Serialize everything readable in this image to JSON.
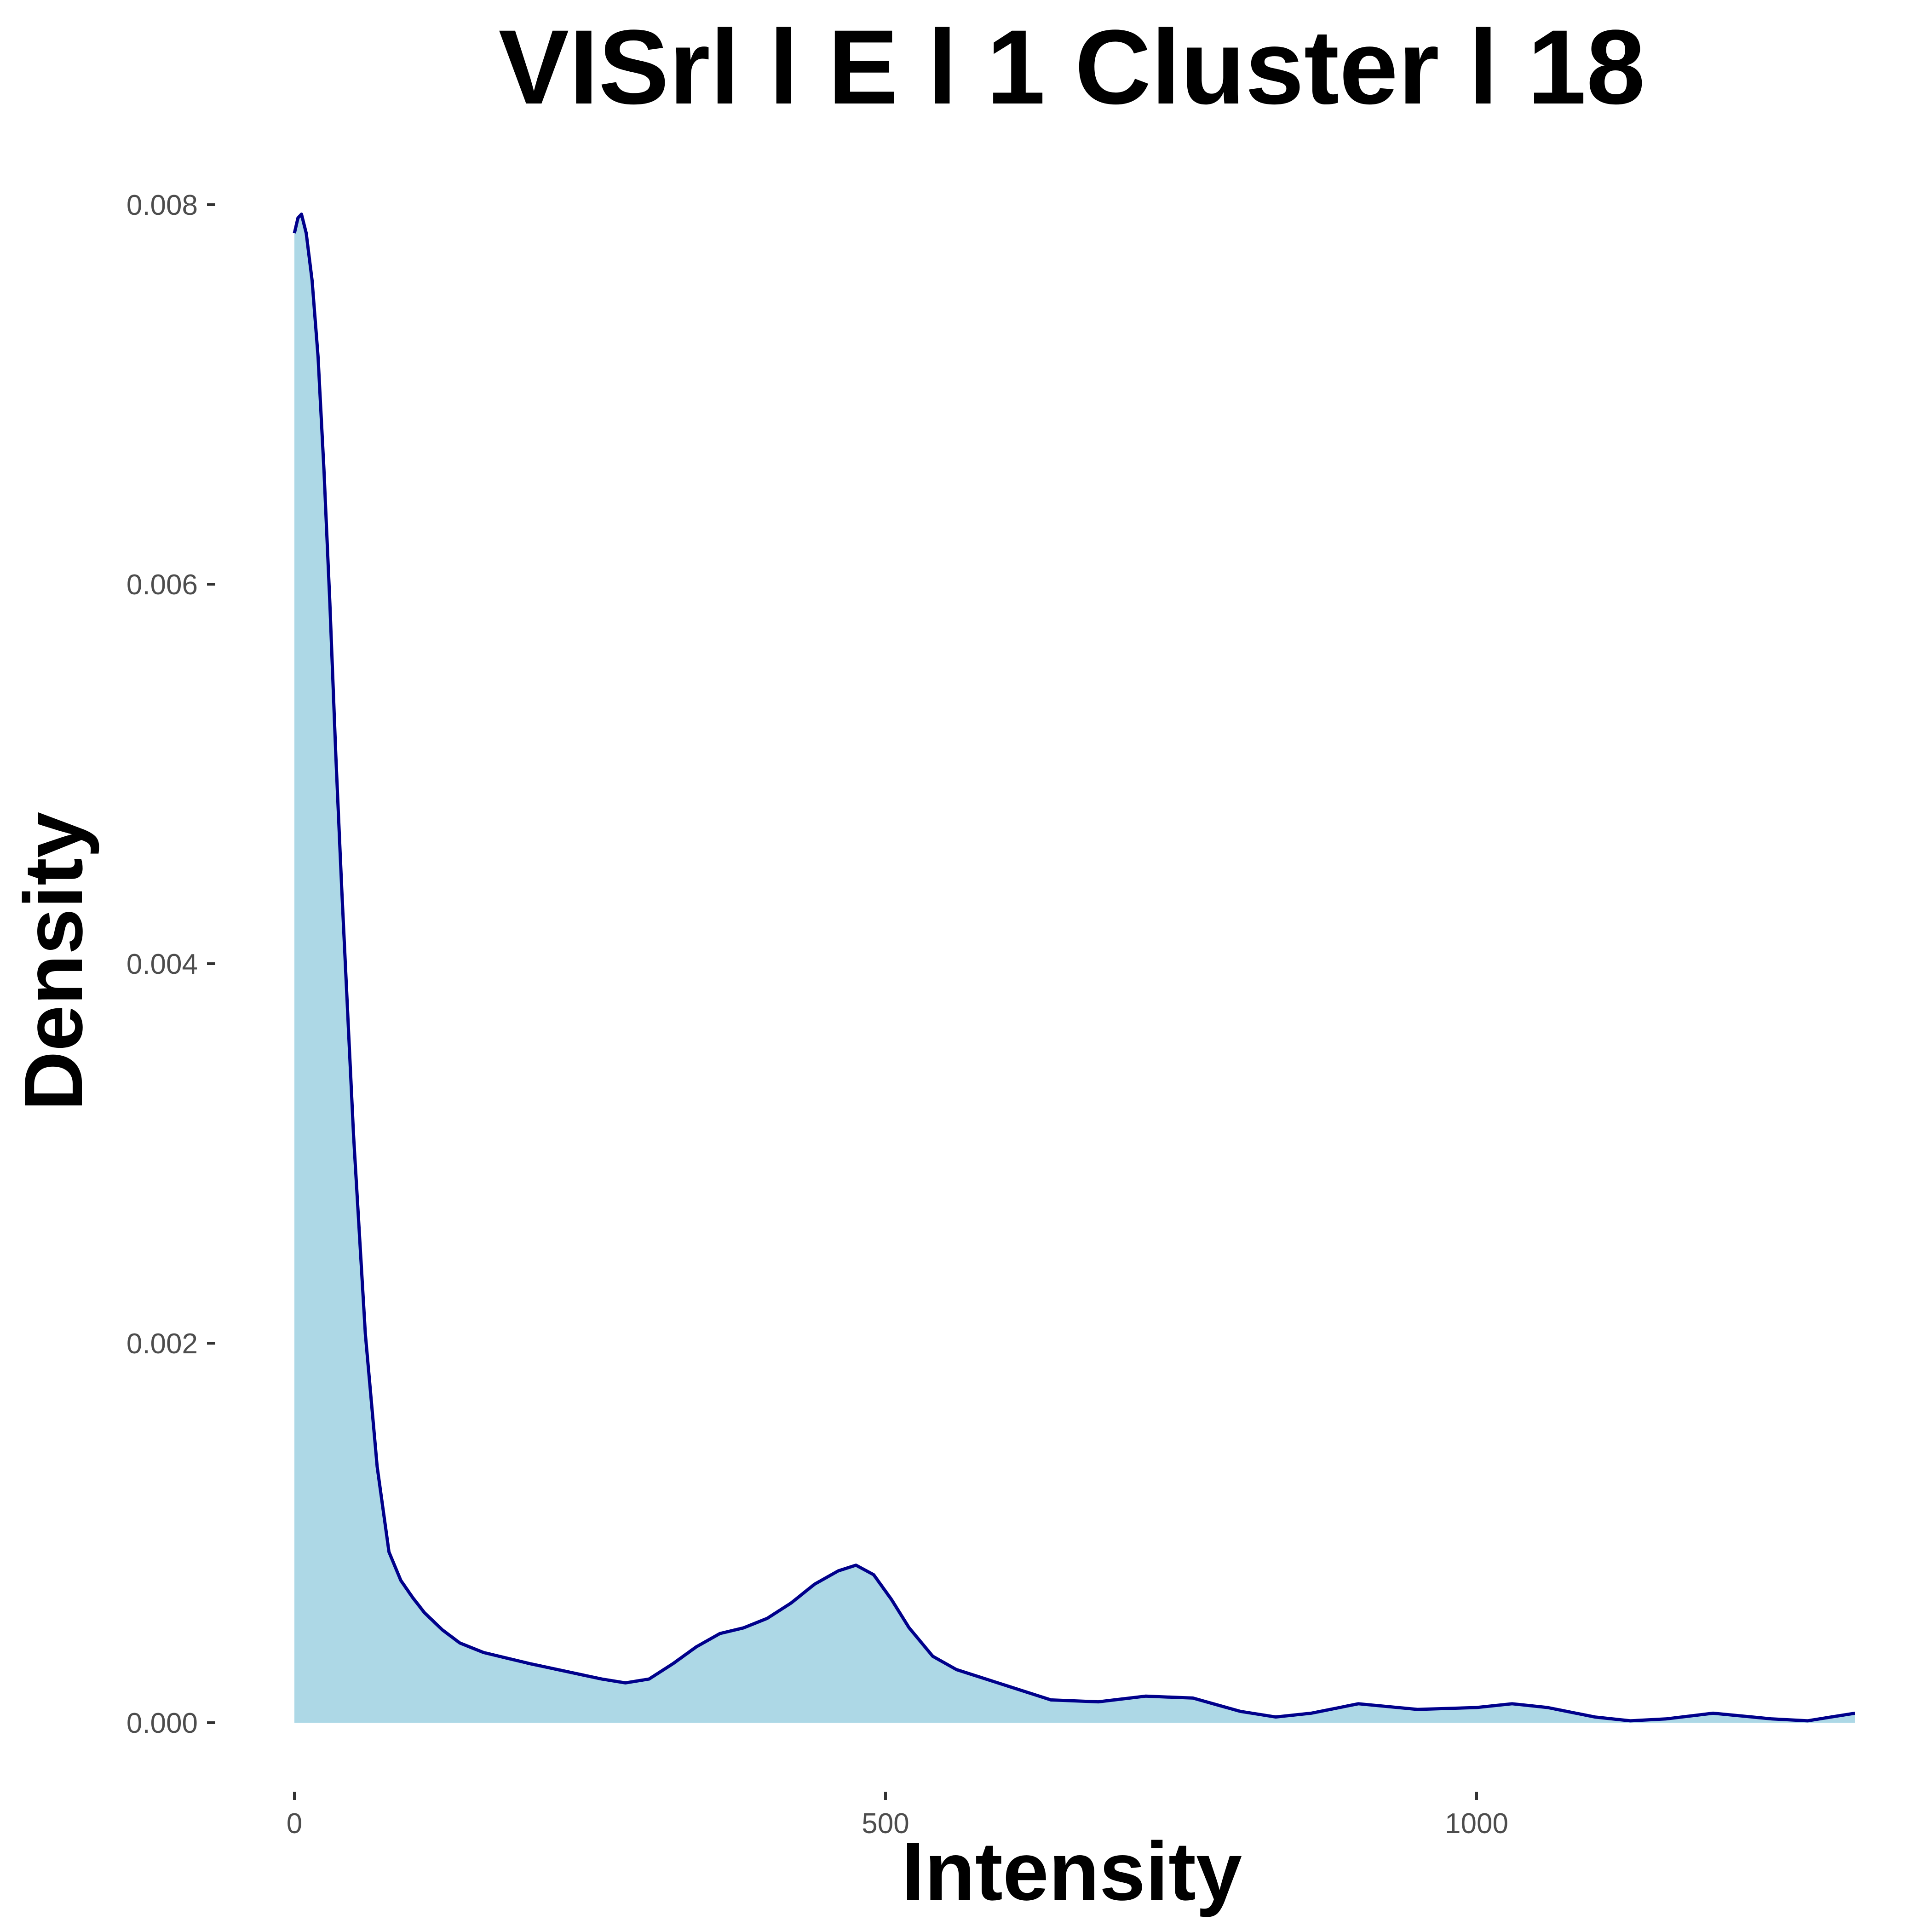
{
  "chart_data": {
    "type": "area",
    "title": "VISrl l E l 1 Cluster l  18",
    "xlabel": "Intensity",
    "ylabel": "Density",
    "xlim": [
      0,
      1320
    ],
    "ylim": [
      0,
      0.008
    ],
    "x_ticks": [
      0,
      500,
      1000
    ],
    "x_tick_labels": [
      "0",
      "500",
      "1000"
    ],
    "y_ticks": [
      0,
      0.002,
      0.004,
      0.006,
      0.008
    ],
    "y_tick_labels": [
      "0.000",
      "0.002",
      "0.004",
      "0.006",
      "0.008"
    ],
    "grid": false,
    "legend": "none",
    "fill_color": "#add8e6",
    "line_color": "#00008b",
    "series": [
      {
        "x": [
          0,
          3,
          6,
          10,
          15,
          20,
          25,
          30,
          35,
          40,
          50,
          60,
          70,
          80,
          90,
          100,
          110,
          125,
          140,
          160,
          180,
          200,
          230,
          260,
          280,
          300,
          320,
          340,
          360,
          380,
          400,
          420,
          440,
          460,
          475,
          490,
          505,
          520,
          540,
          560,
          600,
          640,
          680,
          720,
          760,
          800,
          830,
          860,
          900,
          950,
          1000,
          1030,
          1060,
          1100,
          1130,
          1160,
          1200,
          1250,
          1280,
          1300,
          1320
        ],
        "y": [
          0.00785,
          0.00793,
          0.00795,
          0.00785,
          0.0076,
          0.0072,
          0.0066,
          0.0059,
          0.0051,
          0.0044,
          0.0031,
          0.00205,
          0.00135,
          0.0009,
          0.00075,
          0.00066,
          0.00058,
          0.00049,
          0.00042,
          0.00037,
          0.00034,
          0.00031,
          0.00027,
          0.00023,
          0.00021,
          0.00023,
          0.00031,
          0.0004,
          0.00047,
          0.0005,
          0.00055,
          0.00063,
          0.00073,
          0.0008,
          0.00083,
          0.00078,
          0.00065,
          0.0005,
          0.00035,
          0.00028,
          0.0002,
          0.00012,
          0.00011,
          0.00014,
          0.00013,
          6e-05,
          3e-05,
          5e-05,
          0.0001,
          7e-05,
          8e-05,
          0.0001,
          8e-05,
          3e-05,
          1e-05,
          2e-05,
          5e-05,
          2e-05,
          1e-05,
          3e-05,
          5e-05
        ]
      }
    ]
  }
}
